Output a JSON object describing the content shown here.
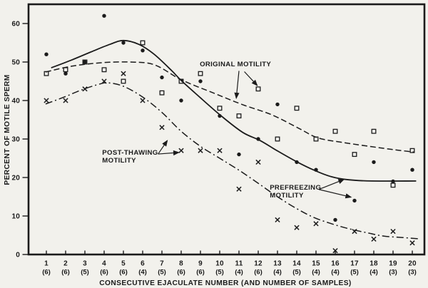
{
  "figure": {
    "background": "#f2f1ec",
    "ink": "#1b1b1b"
  },
  "chart_data": {
    "type": "scatter",
    "title": "",
    "xlabel": "CONSECUTIVE EJACULATE NUMBER (AND NUMBER OF SAMPLES)",
    "ylabel": "PERCENT OF MOTILE SPERM",
    "x_categories": [
      1,
      2,
      3,
      4,
      5,
      6,
      7,
      8,
      9,
      10,
      11,
      12,
      13,
      14,
      15,
      16,
      17,
      18,
      19,
      20
    ],
    "x_sample_counts": [
      "(6)",
      "(6)",
      "(5)",
      "(6)",
      "(6)",
      "(4)",
      "(5)",
      "(6)",
      "(6)",
      "(5)",
      "(4)",
      "(6)",
      "(4)",
      "(5)",
      "(4)",
      "(4)",
      "(5)",
      "(4)",
      "(3)",
      "(3)"
    ],
    "y_ticks": [
      0,
      10,
      20,
      30,
      40,
      50,
      60
    ],
    "ylim": [
      0,
      65
    ],
    "grid": "off",
    "legend": "inline-annotations",
    "series": [
      {
        "id": "original-motility",
        "name": "ORIGINAL MOTILITY",
        "marker": "open-square",
        "line": "dashed",
        "values": [
          47,
          48,
          50,
          48,
          45,
          55,
          42,
          45,
          47,
          38,
          36,
          43,
          30,
          38,
          30,
          32,
          26,
          32,
          18,
          27
        ],
        "curve": [
          [
            0.96,
            47.4
          ],
          [
            2.3,
            48.9
          ],
          [
            3.8,
            49.8
          ],
          [
            5.3,
            50.0
          ],
          [
            6.6,
            49.3
          ],
          [
            8.0,
            45.4
          ],
          [
            9.7,
            41.9
          ],
          [
            11.2,
            38.9
          ],
          [
            12.7,
            36.3
          ],
          [
            14.1,
            32.8
          ],
          [
            15.1,
            30.3
          ],
          [
            16.4,
            29.1
          ],
          [
            17.9,
            28.0
          ],
          [
            19.1,
            27.2
          ],
          [
            20.1,
            26.6
          ]
        ]
      },
      {
        "id": "prefreezing-motility",
        "name": "PREFREEZING MOTILITY",
        "marker": "filled-circle",
        "line": "solid",
        "values": [
          52,
          47,
          50,
          62,
          55,
          53,
          46,
          40,
          45,
          36,
          26,
          30,
          39,
          24,
          22,
          9,
          14,
          24,
          19,
          22
        ],
        "curve": [
          [
            1.25,
            48.5
          ],
          [
            2.3,
            50.5
          ],
          [
            3.4,
            52.8
          ],
          [
            4.3,
            54.6
          ],
          [
            5.0,
            55.6
          ],
          [
            5.8,
            54.6
          ],
          [
            6.6,
            52.0
          ],
          [
            7.5,
            47.8
          ],
          [
            8.0,
            45.2
          ],
          [
            9.0,
            40.7
          ],
          [
            10.1,
            35.9
          ],
          [
            11.2,
            31.7
          ],
          [
            12.1,
            29.6
          ],
          [
            13.0,
            26.9
          ],
          [
            14.0,
            24.1
          ],
          [
            14.9,
            21.9
          ],
          [
            15.8,
            20.2
          ],
          [
            16.7,
            19.4
          ],
          [
            17.9,
            19.1
          ],
          [
            20.2,
            19.1
          ]
        ]
      },
      {
        "id": "post-thawing-motility",
        "name": "POST-THAWING MOTILITY",
        "marker": "x",
        "line": "dash-dot",
        "values": [
          40,
          40,
          43,
          45,
          47,
          40,
          33,
          27,
          27,
          27,
          17,
          24,
          9,
          7,
          8,
          1,
          6,
          4,
          6,
          3
        ],
        "curve": [
          [
            0.96,
            39.1
          ],
          [
            1.93,
            40.9
          ],
          [
            2.85,
            42.8
          ],
          [
            3.78,
            44.3
          ],
          [
            4.22,
            44.6
          ],
          [
            5.0,
            43.7
          ],
          [
            6.0,
            40.9
          ],
          [
            7.0,
            36.9
          ],
          [
            8.0,
            32.0
          ],
          [
            9.0,
            28.1
          ],
          [
            10.0,
            25.0
          ],
          [
            11.0,
            21.9
          ],
          [
            12.0,
            18.5
          ],
          [
            13.0,
            15.0
          ],
          [
            14.0,
            11.9
          ],
          [
            14.9,
            9.6
          ],
          [
            15.8,
            8.0
          ],
          [
            16.7,
            6.7
          ],
          [
            17.7,
            5.6
          ],
          [
            18.5,
            4.8
          ],
          [
            19.5,
            4.4
          ],
          [
            20.3,
            4.1
          ]
        ]
      }
    ],
    "annotations": [
      {
        "id": "original-motility-label",
        "lines": [
          "ORIGINAL MOTILITY"
        ],
        "anchor": "middle",
        "x": 10.82,
        "v": 48.9,
        "arrows": [
          {
            "x1": 11.0,
            "v1": 47.7,
            "x2": 10.86,
            "v2": 40.6
          },
          {
            "x1": 11.28,
            "v1": 47.5,
            "x2": 11.95,
            "v2": 43.9
          }
        ]
      },
      {
        "id": "post-thawing-motility-label",
        "lines": [
          "POST-THAWING",
          "MOTILITY"
        ],
        "anchor": "start",
        "x": 3.9,
        "v": 25.9,
        "arrows": [
          {
            "x1": 6.8,
            "v1": 26.1,
            "x2": 7.28,
            "v2": 29.6
          },
          {
            "x1": 6.8,
            "v1": 26.1,
            "x2": 7.88,
            "v2": 26.5
          }
        ]
      },
      {
        "id": "prefreezing-motility-label",
        "lines": [
          "PREFREEZING",
          "MOTILITY"
        ],
        "anchor": "start",
        "x": 12.6,
        "v": 16.85,
        "arrows": [
          {
            "x1": 15.15,
            "v1": 16.9,
            "x2": 16.45,
            "v2": 19.5
          },
          {
            "x1": 15.15,
            "v1": 16.9,
            "x2": 16.82,
            "v2": 14.9
          }
        ]
      }
    ]
  }
}
